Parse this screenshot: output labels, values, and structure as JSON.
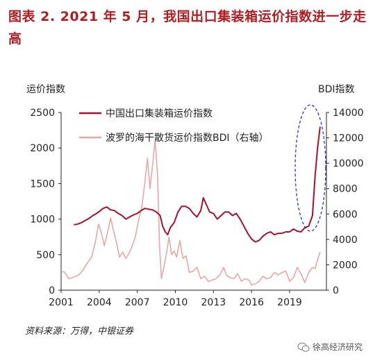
{
  "title": "图表 2.  2021 年 5 月，我国出口集装箱运价指数进一步走高",
  "source": "资料来源：万得，中银证券",
  "watermark": "徐高经济研究",
  "colors": {
    "title": "#b11d21",
    "ccfi": "#a8102a",
    "bdi": "#e8a6a6",
    "highlight": "#2233cc"
  },
  "chart_data": {
    "type": "line",
    "ylabel_left": "运价指数",
    "ylabel_right": "BDI指数",
    "x_ticks": [
      "2001",
      "2004",
      "2007",
      "2010",
      "2013",
      "2016",
      "2019"
    ],
    "x_range": [
      2001,
      2021.9
    ],
    "y_left": {
      "range": [
        0,
        2500
      ],
      "ticks": [
        0,
        500,
        1000,
        1500,
        2000,
        2500
      ]
    },
    "y_right": {
      "range": [
        0,
        14000
      ],
      "ticks": [
        0,
        2000,
        4000,
        6000,
        8000,
        10000,
        12000,
        14000
      ]
    },
    "legend_position": "top-center",
    "highlight": "dashed ellipse around 2020-2021 surge",
    "series": [
      {
        "name": "中国出口集装箱运价指数",
        "axis": "left",
        "x": [
          2002.0,
          2002.3,
          2002.6,
          2002.9,
          2003.2,
          2003.5,
          2003.8,
          2004.1,
          2004.3,
          2004.6,
          2004.9,
          2005.2,
          2005.5,
          2005.8,
          2006.1,
          2006.4,
          2006.7,
          2007.0,
          2007.3,
          2007.6,
          2007.9,
          2008.2,
          2008.5,
          2008.8,
          2009.0,
          2009.2,
          2009.4,
          2009.6,
          2009.9,
          2010.2,
          2010.5,
          2010.8,
          2011.1,
          2011.4,
          2011.7,
          2012.0,
          2012.2,
          2012.4,
          2012.7,
          2013.0,
          2013.3,
          2013.6,
          2013.9,
          2014.2,
          2014.5,
          2014.8,
          2015.1,
          2015.4,
          2015.7,
          2016.0,
          2016.3,
          2016.6,
          2016.9,
          2017.2,
          2017.5,
          2017.8,
          2018.1,
          2018.4,
          2018.7,
          2019.0,
          2019.3,
          2019.6,
          2019.9,
          2020.2,
          2020.5,
          2020.8,
          2021.0,
          2021.2,
          2021.4
        ],
        "values": [
          920,
          930,
          950,
          980,
          1010,
          1050,
          1080,
          1120,
          1150,
          1170,
          1130,
          1120,
          1080,
          1050,
          1000,
          1030,
          1060,
          1080,
          1120,
          1150,
          1140,
          1130,
          1100,
          1050,
          900,
          820,
          780,
          880,
          950,
          1100,
          1180,
          1180,
          1150,
          1080,
          1030,
          1120,
          1300,
          1220,
          1100,
          1080,
          1000,
          1050,
          1100,
          1100,
          1050,
          1080,
          1000,
          900,
          800,
          720,
          680,
          700,
          760,
          800,
          820,
          780,
          800,
          800,
          820,
          820,
          860,
          830,
          820,
          880,
          900,
          1050,
          1600,
          2000,
          2300
        ]
      },
      {
        "name": "波罗的海干散货运价指数BDI（右轴）",
        "axis": "right",
        "x": [
          2001.0,
          2001.3,
          2001.6,
          2001.9,
          2002.2,
          2002.5,
          2002.8,
          2003.1,
          2003.4,
          2003.7,
          2003.95,
          2004.15,
          2004.4,
          2004.65,
          2004.9,
          2005.1,
          2005.35,
          2005.6,
          2005.85,
          2006.1,
          2006.35,
          2006.6,
          2006.85,
          2007.1,
          2007.35,
          2007.6,
          2007.8,
          2008.0,
          2008.2,
          2008.4,
          2008.6,
          2008.75,
          2008.9,
          2009.1,
          2009.3,
          2009.5,
          2009.7,
          2009.9,
          2010.1,
          2010.35,
          2010.6,
          2010.85,
          2011.1,
          2011.4,
          2011.7,
          2012.0,
          2012.3,
          2012.6,
          2012.9,
          2013.2,
          2013.5,
          2013.8,
          2014.0,
          2014.3,
          2014.6,
          2014.9,
          2015.2,
          2015.5,
          2015.8,
          2016.0,
          2016.3,
          2016.6,
          2016.9,
          2017.2,
          2017.5,
          2017.8,
          2018.1,
          2018.4,
          2018.7,
          2019.0,
          2019.3,
          2019.6,
          2019.9,
          2020.2,
          2020.5,
          2020.8,
          2021.0,
          2021.2,
          2021.4
        ],
        "values": [
          1500,
          1400,
          900,
          1000,
          1100,
          1300,
          1700,
          2200,
          2600,
          3800,
          5200,
          4600,
          3500,
          4500,
          5700,
          4800,
          3800,
          2600,
          3000,
          2500,
          2900,
          3500,
          4200,
          5500,
          6500,
          8500,
          10400,
          8000,
          9800,
          11800,
          9000,
          3500,
          900,
          1800,
          2900,
          4200,
          2800,
          3100,
          2600,
          3900,
          2500,
          2700,
          1400,
          1500,
          1800,
          900,
          1100,
          700,
          800,
          900,
          1200,
          1800,
          1200,
          1000,
          900,
          1300,
          700,
          900,
          800,
          400,
          500,
          700,
          1100,
          900,
          1000,
          1400,
          1200,
          1400,
          1500,
          700,
          1000,
          1800,
          1300,
          600,
          1400,
          1800,
          1700,
          2400,
          3000
        ]
      }
    ]
  }
}
